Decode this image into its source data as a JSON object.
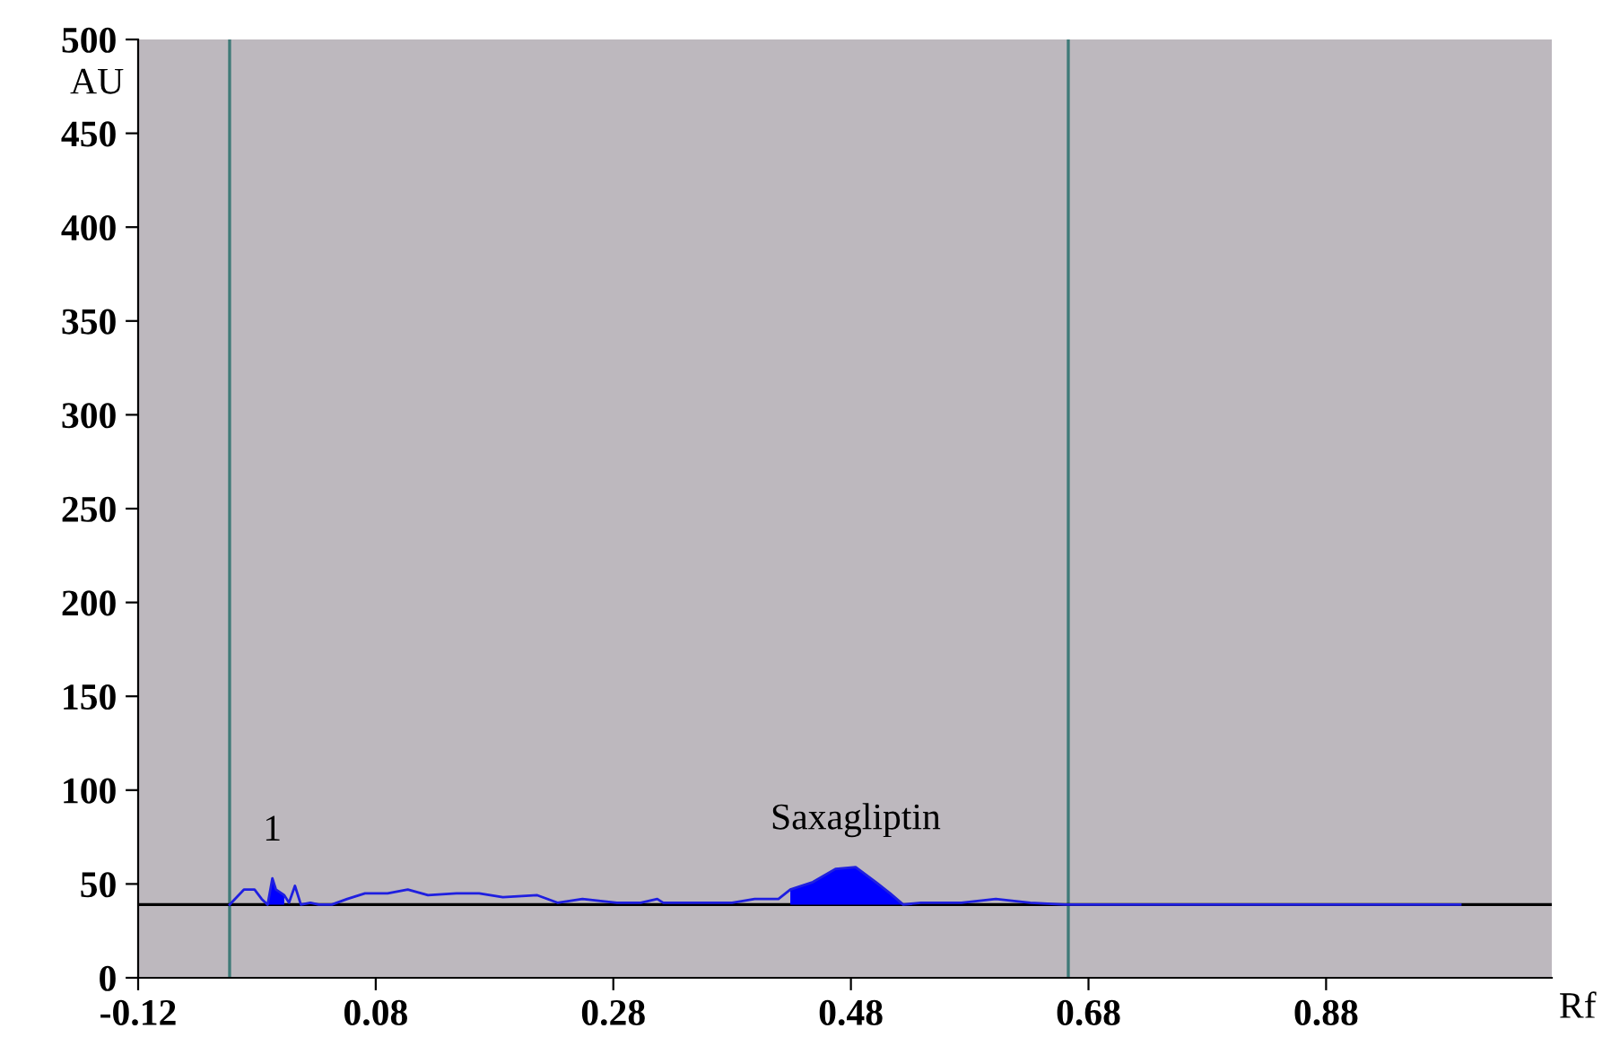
{
  "chart_data": {
    "type": "line",
    "xlabel": "Rf",
    "ylabel": "AU",
    "xlim": [
      -0.12,
      1.07
    ],
    "ylim": [
      0,
      500
    ],
    "xticks": [
      -0.12,
      0.08,
      0.28,
      0.48,
      0.68,
      0.88
    ],
    "yticks": [
      0,
      50,
      100,
      150,
      200,
      250,
      300,
      350,
      400,
      450,
      500
    ],
    "grid": false,
    "legend": false,
    "marker": "none",
    "line_style": "solid",
    "series": [
      {
        "color": "#1f1fe0",
        "x": [
          -0.043,
          -0.031,
          -0.022,
          -0.016,
          -0.011,
          -0.007,
          -0.004,
          0.003,
          0.007,
          0.012,
          0.017,
          0.025,
          0.032,
          0.043,
          0.056,
          0.071,
          0.09,
          0.107,
          0.124,
          0.148,
          0.167,
          0.187,
          0.216,
          0.233,
          0.254,
          0.283,
          0.303,
          0.317,
          0.322,
          0.351,
          0.38,
          0.399,
          0.419,
          0.429,
          0.448,
          0.467,
          0.484,
          0.501,
          0.513,
          0.524,
          0.539,
          0.573,
          0.602,
          0.631,
          0.66,
          0.663,
          0.993
        ],
        "values": [
          39,
          47,
          47,
          42,
          39,
          53,
          47,
          44,
          40,
          49,
          39,
          40,
          39,
          39,
          42,
          45,
          45,
          47,
          44,
          45,
          45,
          43,
          44,
          40,
          42,
          40,
          40,
          42,
          40,
          40,
          40,
          42,
          42,
          47,
          51,
          58,
          59,
          51,
          45,
          39,
          40,
          40,
          42,
          40,
          39,
          39,
          39
        ]
      },
      {
        "type": "area",
        "color": "#0000ff",
        "x": [
          -0.011,
          -0.007,
          -0.004,
          0.003
        ],
        "values": [
          39,
          53,
          47,
          44
        ]
      },
      {
        "type": "area",
        "color": "#0000ff",
        "x": [
          0.429,
          0.448,
          0.467,
          0.484,
          0.501,
          0.513,
          0.524
        ],
        "values": [
          47,
          51,
          58,
          59,
          51,
          45,
          39
        ]
      }
    ],
    "ref_lines": [
      {
        "axis": "x",
        "value": -0.043,
        "color": "#3f7a78"
      },
      {
        "axis": "x",
        "value": 0.663,
        "color": "#3f7a78"
      },
      {
        "axis": "y",
        "value": 39,
        "color": "#000000"
      }
    ],
    "annotations": [
      {
        "text": "1",
        "x": -0.007,
        "y": 53
      },
      {
        "text": "Saxagliptin",
        "x": 0.484,
        "y": 59
      }
    ]
  }
}
